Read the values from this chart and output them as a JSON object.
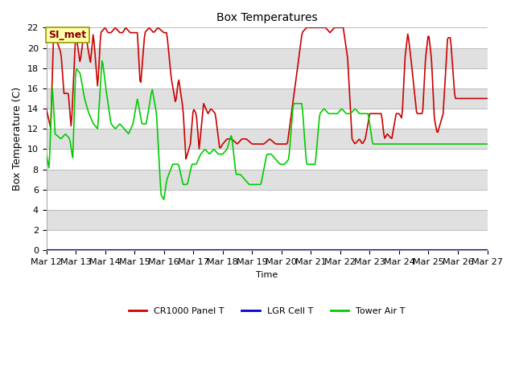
{
  "title": "Box Temperatures",
  "ylabel": "Box Temperature (C)",
  "xlabel": "Time",
  "ylim": [
    0,
    22
  ],
  "yticks": [
    0,
    2,
    4,
    6,
    8,
    10,
    12,
    14,
    16,
    18,
    20,
    22
  ],
  "xtick_labels": [
    "Mar 12",
    "Mar 13",
    "Mar 14",
    "Mar 15",
    "Mar 16",
    "Mar 17",
    "Mar 18",
    "Mar 19",
    "Mar 20",
    "Mar 21",
    "Mar 22",
    "Mar 23",
    "Mar 24",
    "Mar 25",
    "Mar 26",
    "Mar 27"
  ],
  "series": {
    "CR1000 Panel T": {
      "color": "#cc0000",
      "linewidth": 1.2
    },
    "LGR Cell T": {
      "color": "#0000cc",
      "linewidth": 1.5
    },
    "Tower Air T": {
      "color": "#00cc00",
      "linewidth": 1.2
    }
  },
  "bg_color": "#ffffff",
  "band_white": "#ffffff",
  "band_gray": "#e0e0e0",
  "si_met_label": "SI_met",
  "si_met_bg": "#ffffaa",
  "si_met_border": "#999900",
  "si_met_text_color": "#880000",
  "title_fontsize": 10,
  "axis_fontsize": 8,
  "ylabel_fontsize": 9,
  "legend_fontsize": 8
}
